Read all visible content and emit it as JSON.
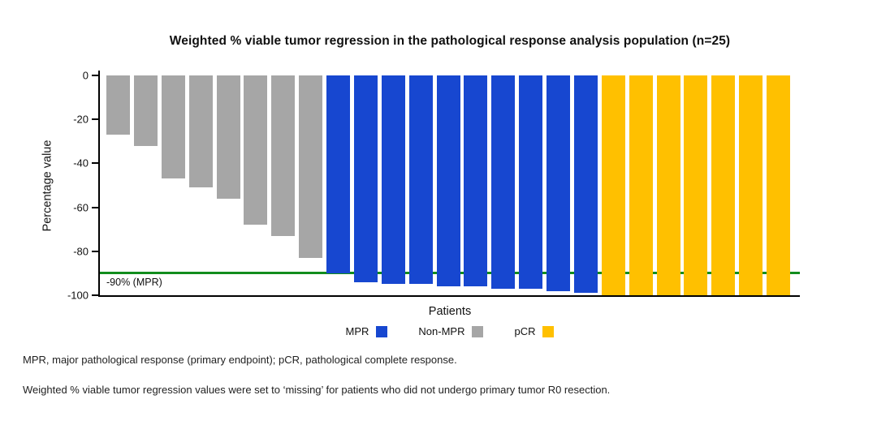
{
  "title": "Weighted % viable tumor regression in the pathological response analysis population (n=25)",
  "y_axis": {
    "label": "Percentage value",
    "ticks": [
      0,
      -20,
      -40,
      -60,
      -80,
      -100
    ],
    "min": -100,
    "max": 0
  },
  "x_axis": {
    "label": "Patients"
  },
  "reference_line": {
    "value": -90,
    "label": "-90% (MPR)",
    "color": "#128d1d"
  },
  "colors": {
    "MPR": "#1747d0",
    "Non-MPR": "#a6a6a6",
    "pCR": "#ffc000",
    "axis": "#000000"
  },
  "legend": [
    {
      "label": "MPR",
      "group": "MPR"
    },
    {
      "label": "Non-MPR",
      "group": "Non-MPR"
    },
    {
      "label": "pCR",
      "group": "pCR"
    }
  ],
  "chart_data": {
    "type": "bar",
    "title": "Weighted % viable tumor regression in the pathological response analysis population (n=25)",
    "xlabel": "Patients",
    "ylabel": "Percentage value",
    "ylim": [
      -100,
      0
    ],
    "grid": false,
    "legend_position": "bottom",
    "reference_line": {
      "value": -90,
      "label": "-90% (MPR)"
    },
    "series": [
      {
        "name": "Non-MPR",
        "values": [
          -27,
          -32,
          -47,
          -51,
          -56,
          -68,
          -73,
          -83
        ]
      },
      {
        "name": "MPR",
        "values": [
          -90,
          -94,
          -95,
          -95,
          -96,
          -96,
          -97,
          -97,
          -98,
          -99
        ]
      },
      {
        "name": "pCR",
        "values": [
          -100,
          -100,
          -100,
          -100,
          -100,
          -100,
          -100
        ]
      }
    ],
    "bars": [
      {
        "group": "Non-MPR",
        "value": -27
      },
      {
        "group": "Non-MPR",
        "value": -32
      },
      {
        "group": "Non-MPR",
        "value": -47
      },
      {
        "group": "Non-MPR",
        "value": -51
      },
      {
        "group": "Non-MPR",
        "value": -56
      },
      {
        "group": "Non-MPR",
        "value": -68
      },
      {
        "group": "Non-MPR",
        "value": -73
      },
      {
        "group": "Non-MPR",
        "value": -83
      },
      {
        "group": "MPR",
        "value": -90
      },
      {
        "group": "MPR",
        "value": -94
      },
      {
        "group": "MPR",
        "value": -95
      },
      {
        "group": "MPR",
        "value": -95
      },
      {
        "group": "MPR",
        "value": -96
      },
      {
        "group": "MPR",
        "value": -96
      },
      {
        "group": "MPR",
        "value": -97
      },
      {
        "group": "MPR",
        "value": -97
      },
      {
        "group": "MPR",
        "value": -98
      },
      {
        "group": "MPR",
        "value": -99
      },
      {
        "group": "pCR",
        "value": -100
      },
      {
        "group": "pCR",
        "value": -100
      },
      {
        "group": "pCR",
        "value": -100
      },
      {
        "group": "pCR",
        "value": -100
      },
      {
        "group": "pCR",
        "value": -100
      },
      {
        "group": "pCR",
        "value": -100
      },
      {
        "group": "pCR",
        "value": -100
      }
    ]
  },
  "footnotes": [
    "MPR, major pathological response (primary endpoint); pCR, pathological complete response.",
    "Weighted % viable tumor regression values were set to ‘missing’ for patients who did not undergo primary tumor R0 resection."
  ]
}
